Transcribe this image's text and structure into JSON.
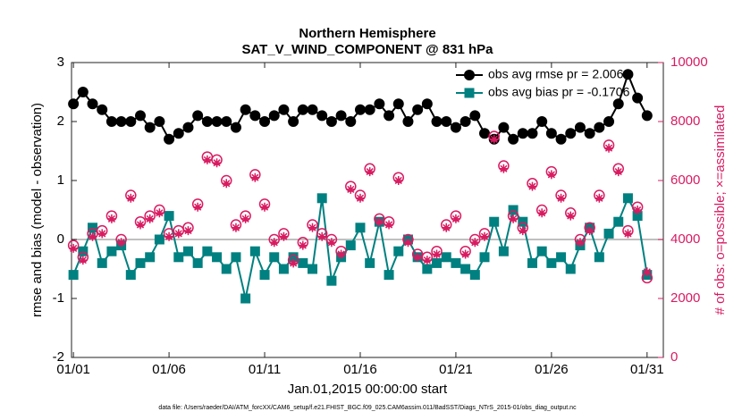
{
  "chart_data": {
    "type": "line",
    "title": "Northern Hemisphere",
    "subtitle": "SAT_V_WIND_COMPONENT @ 831 hPa",
    "xlabel": "Jan.01,2015 00:00:00 start",
    "ylabel": "rmse and bias (model - observation)",
    "y2label": "# of obs: o=possible; ×=assimilated",
    "footnote": "data file: /Users/raeder/DAI/ATM_forcXX/CAM6_setup/f.e21.FHIST_BGC.f09_025.CAM6assim.011/BadSST/Diags_NTrS_2015-01/obs_diag_output.nc",
    "x": [
      1,
      1.5,
      2,
      2.5,
      3,
      3.5,
      4,
      4.5,
      5,
      5.5,
      6,
      6.5,
      7,
      7.5,
      8,
      8.5,
      9,
      9.5,
      10,
      10.5,
      11,
      11.5,
      12,
      12.5,
      13,
      13.5,
      14,
      14.5,
      15,
      15.5,
      16,
      16.5,
      17,
      17.5,
      18,
      18.5,
      19,
      19.5,
      20,
      20.5,
      21,
      21.5,
      22,
      22.5,
      23,
      23.5,
      24,
      24.5,
      25,
      25.5,
      26,
      26.5,
      27,
      27.5,
      28,
      28.5,
      29,
      29.5,
      30,
      30.5,
      31
    ],
    "xlim": [
      0.9,
      31.85
    ],
    "xticks": [
      {
        "value": 1,
        "label": "01/01"
      },
      {
        "value": 6,
        "label": "01/06"
      },
      {
        "value": 11,
        "label": "01/11"
      },
      {
        "value": 16,
        "label": "01/16"
      },
      {
        "value": 21,
        "label": "01/21"
      },
      {
        "value": 26,
        "label": "01/26"
      },
      {
        "value": 31,
        "label": "01/31"
      }
    ],
    "ylim": [
      -2,
      3
    ],
    "yticks": [
      -2,
      -1,
      0,
      1,
      2,
      3
    ],
    "y2lim": [
      0,
      10000
    ],
    "y2ticks": [
      0,
      2000,
      4000,
      6000,
      8000,
      10000
    ],
    "legend": "upper right",
    "series": [
      {
        "name": "obs avg rmse pr = 2.006",
        "color": "#000000",
        "marker": "circle",
        "values": [
          2.3,
          2.5,
          2.3,
          2.2,
          2.0,
          2.0,
          2.0,
          2.1,
          1.9,
          2.0,
          1.7,
          1.8,
          1.9,
          2.1,
          2.0,
          2.0,
          2.0,
          1.9,
          2.2,
          2.1,
          2.0,
          2.1,
          2.2,
          2.0,
          2.2,
          2.2,
          2.1,
          2.0,
          2.1,
          2.0,
          2.2,
          2.2,
          2.3,
          2.1,
          2.3,
          2.0,
          2.2,
          2.3,
          2.0,
          2.0,
          1.9,
          2.0,
          2.1,
          1.8,
          1.7,
          1.9,
          1.7,
          1.8,
          1.8,
          2.0,
          1.8,
          1.7,
          1.8,
          1.9,
          1.8,
          1.9,
          2.0,
          2.3,
          2.8,
          2.4,
          2.1
        ]
      },
      {
        "name": "obs avg bias pr = -0.1706",
        "color": "#008080",
        "marker": "square",
        "values": [
          -0.6,
          -0.2,
          0.2,
          -0.4,
          -0.2,
          -0.1,
          -0.6,
          -0.4,
          -0.3,
          0.0,
          0.4,
          -0.3,
          -0.2,
          -0.4,
          -0.2,
          -0.3,
          -0.5,
          -0.3,
          -1.0,
          -0.2,
          -0.6,
          -0.3,
          -0.5,
          -0.3,
          -0.4,
          -0.5,
          0.7,
          -0.7,
          -0.3,
          -0.1,
          0.2,
          -0.4,
          0.3,
          -0.6,
          -0.2,
          0.0,
          -0.3,
          -0.5,
          -0.4,
          -0.3,
          -0.4,
          -0.5,
          -0.6,
          -0.3,
          0.3,
          -0.2,
          0.5,
          0.3,
          -0.4,
          -0.2,
          -0.4,
          -0.3,
          -0.5,
          -0.1,
          0.2,
          -0.3,
          0.1,
          0.3,
          0.7,
          0.4,
          -0.6
        ]
      },
      {
        "color": "#d81b60",
        "marker": "open-circle",
        "axis": "y2",
        "line": false,
        "values": [
          3800,
          3400,
          4200,
          4300,
          4800,
          4000,
          5500,
          4600,
          4800,
          5000,
          4200,
          4300,
          4400,
          5200,
          6800,
          6700,
          6000,
          4500,
          4800,
          6200,
          5200,
          4000,
          4200,
          3300,
          3900,
          4500,
          4200,
          4000,
          3600,
          5800,
          5500,
          6400,
          4700,
          4600,
          6100,
          4000,
          3500,
          3400,
          3600,
          4500,
          4800,
          3600,
          4000,
          4200,
          7500,
          6500,
          4800,
          4400,
          5900,
          5000,
          6300,
          5500,
          4900,
          4000,
          4400,
          5500,
          7200,
          6400,
          4300,
          5100,
          2700
        ]
      },
      {
        "color": "#d81b60",
        "marker": "asterisk",
        "axis": "y2",
        "line": false,
        "values": [
          3700,
          3300,
          4100,
          4200,
          4700,
          3900,
          5400,
          4500,
          4700,
          4900,
          4100,
          4200,
          4300,
          5100,
          6700,
          6600,
          5900,
          4400,
          4700,
          6100,
          5100,
          3900,
          4100,
          3200,
          3800,
          4400,
          4100,
          3900,
          3500,
          5700,
          5400,
          6300,
          4600,
          4500,
          6000,
          3900,
          3400,
          3300,
          3500,
          4400,
          4700,
          3500,
          3900,
          4100,
          7400,
          6400,
          4700,
          4300,
          5800,
          4900,
          6200,
          5400,
          4800,
          3900,
          4300,
          5400,
          7100,
          6300,
          4200,
          5000,
          2900
        ]
      }
    ]
  }
}
